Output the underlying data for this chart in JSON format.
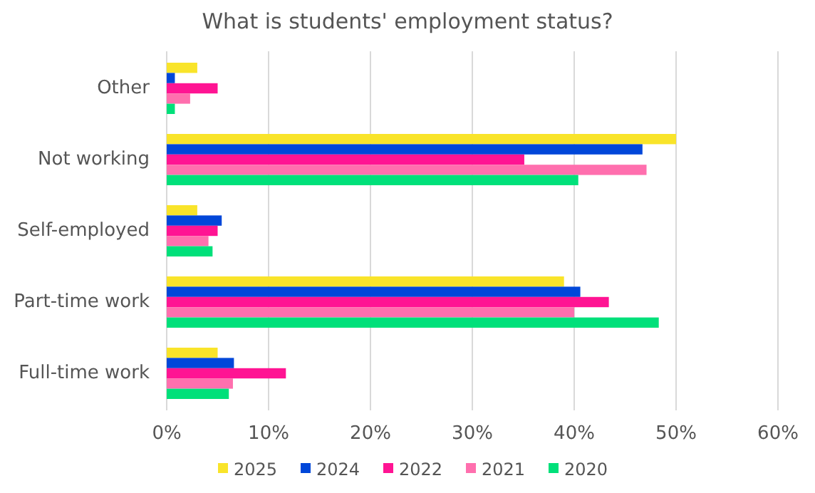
{
  "chart_data": {
    "type": "bar",
    "orientation": "horizontal",
    "title": "What is students' employment status?",
    "categories": [
      "Other",
      "Not working",
      "Self-employed",
      "Part-time work",
      "Full-time work"
    ],
    "series": [
      {
        "name": "2025",
        "color": "#f9e42a",
        "values": [
          3.0,
          50,
          3.0,
          39.0,
          5.0
        ]
      },
      {
        "name": "2024",
        "color": "#0047d9",
        "values": [
          0.8,
          46.7,
          5.4,
          40.6,
          6.6
        ]
      },
      {
        "name": "2022",
        "color": "#ff1493",
        "values": [
          5.0,
          35.1,
          5.0,
          43.4,
          11.7
        ]
      },
      {
        "name": "2021",
        "color": "#ff6fae",
        "values": [
          2.3,
          47.1,
          4.1,
          40.0,
          6.5
        ]
      },
      {
        "name": "2020",
        "color": "#00e07a",
        "values": [
          0.8,
          40.4,
          4.5,
          48.3,
          6.1
        ]
      }
    ],
    "xlim": [
      0,
      60
    ],
    "xticks": [
      {
        "value": 0,
        "label": "0%"
      },
      {
        "value": 10,
        "label": "10%"
      },
      {
        "value": 20,
        "label": "20%"
      },
      {
        "value": 30,
        "label": "30%"
      },
      {
        "value": 40,
        "label": "40%"
      },
      {
        "value": 50,
        "label": "50%"
      },
      {
        "value": 60,
        "label": "60%"
      }
    ],
    "grid": "x",
    "legend": "bottom"
  }
}
